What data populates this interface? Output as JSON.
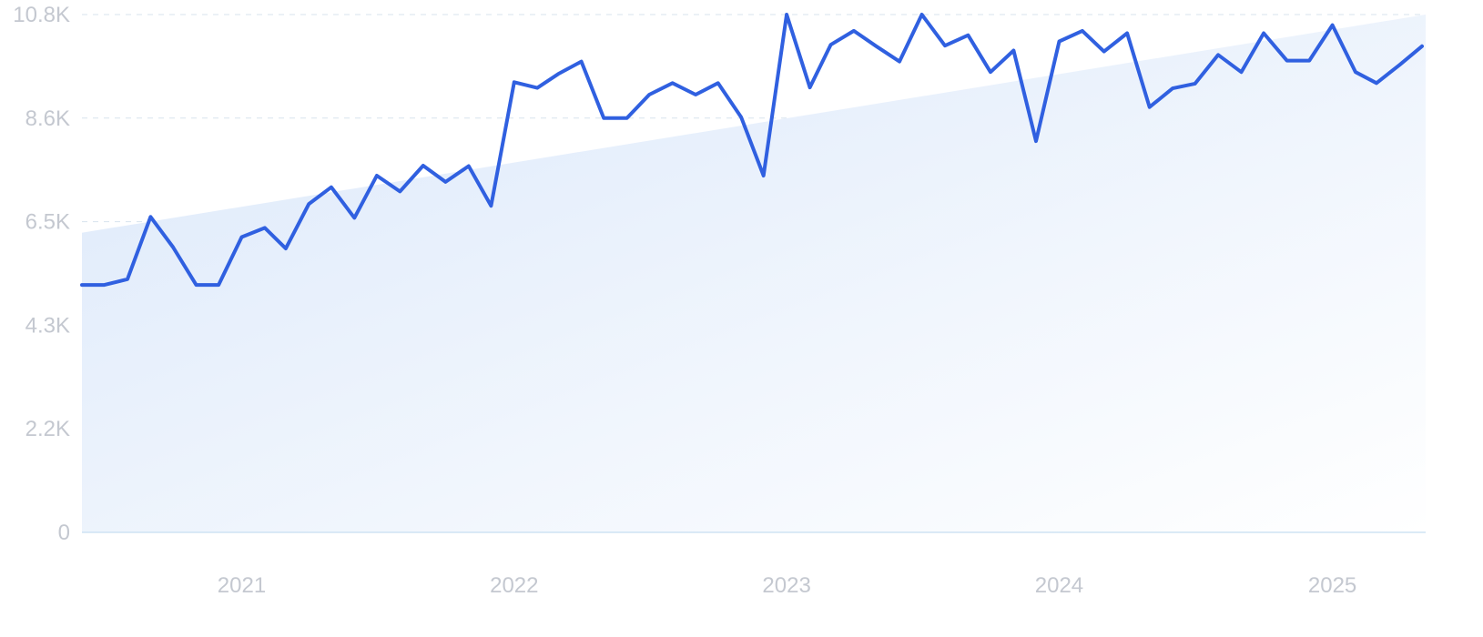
{
  "chart_data": {
    "type": "line",
    "title": "",
    "xlabel": "",
    "ylabel": "",
    "ylim": [
      0,
      10800
    ],
    "xlim": [
      "2020-06-01",
      "2025-05-01"
    ],
    "y_ticks": [
      {
        "value": 0,
        "label": "0"
      },
      {
        "value": 2160,
        "label": "2.2K"
      },
      {
        "value": 4320,
        "label": "4.3K"
      },
      {
        "value": 6480,
        "label": "6.5K"
      },
      {
        "value": 8640,
        "label": "8.6K"
      },
      {
        "value": 10800,
        "label": "10.8K"
      }
    ],
    "x_ticks": [
      {
        "value": "2021-01-01",
        "label": "2021"
      },
      {
        "value": "2022-01-01",
        "label": "2022"
      },
      {
        "value": "2023-01-01",
        "label": "2023"
      },
      {
        "value": "2024-01-01",
        "label": "2024"
      },
      {
        "value": "2025-01-01",
        "label": "2025"
      }
    ],
    "grid": true,
    "legend": "none",
    "colors": {
      "line": "#3060e0",
      "area_top": "#dbe8fa",
      "area_bottom": "#ffffff",
      "grid": "#d7e3ee",
      "tick_text": "#c4c8d0"
    },
    "series": [
      {
        "x": [
          "2020-06-01",
          "2020-07-01",
          "2020-08-01",
          "2020-09-01",
          "2020-10-01",
          "2020-11-01",
          "2020-12-01",
          "2021-01-01",
          "2021-02-01",
          "2021-03-01",
          "2021-04-01",
          "2021-05-01",
          "2021-06-01",
          "2021-07-01",
          "2021-08-01",
          "2021-09-01",
          "2021-10-01",
          "2021-11-01",
          "2021-12-01",
          "2022-01-01",
          "2022-02-01",
          "2022-03-01",
          "2022-04-01",
          "2022-05-01",
          "2022-06-01",
          "2022-07-01",
          "2022-08-01",
          "2022-09-01",
          "2022-10-01",
          "2022-11-01",
          "2022-12-01",
          "2023-01-01",
          "2023-02-01",
          "2023-03-01",
          "2023-04-01",
          "2023-05-01",
          "2023-06-01",
          "2023-07-01",
          "2023-08-01",
          "2023-09-01",
          "2023-10-01",
          "2023-11-01",
          "2023-12-01",
          "2024-01-01",
          "2024-02-01",
          "2024-03-01",
          "2024-04-01",
          "2024-05-01",
          "2024-06-01",
          "2024-07-01",
          "2024-08-01",
          "2024-09-01",
          "2024-10-01",
          "2024-11-01",
          "2024-12-01",
          "2025-01-01",
          "2025-02-01",
          "2025-03-01",
          "2025-04-01",
          "2025-05-01"
        ],
        "values": [
          5160,
          5160,
          5280,
          6580,
          5950,
          5160,
          5160,
          6160,
          6350,
          5920,
          6850,
          7200,
          6560,
          7440,
          7110,
          7650,
          7310,
          7640,
          6810,
          9390,
          9270,
          9560,
          9820,
          8640,
          8640,
          9130,
          9370,
          9130,
          9370,
          8660,
          7440,
          10800,
          9280,
          10170,
          10460,
          10140,
          9820,
          10800,
          10150,
          10370,
          9600,
          10050,
          8160,
          10240,
          10460,
          10030,
          10410,
          8870,
          9260,
          9360,
          9960,
          9600,
          10410,
          9840,
          9840,
          10580,
          9600,
          9370,
          9750,
          10140
        ]
      }
    ],
    "trend": {
      "start_value": 6250,
      "end_value": 10800
    }
  }
}
